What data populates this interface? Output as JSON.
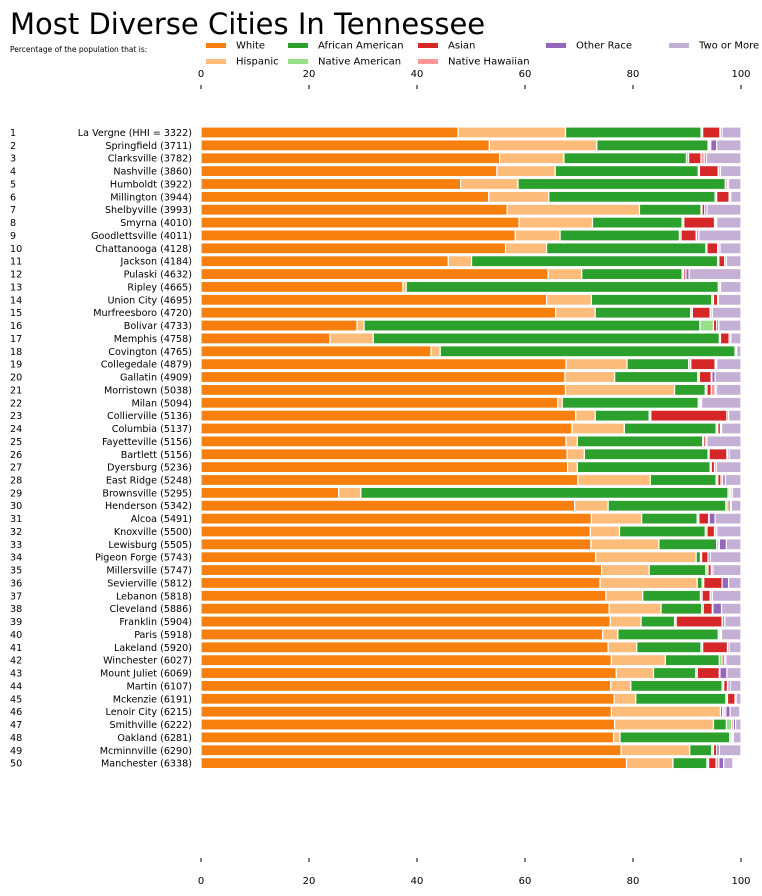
{
  "chart_data": {
    "type": "bar",
    "orientation": "horizontal",
    "stacked": true,
    "title": "Most Diverse Cities In Tennessee",
    "subtitle": "Percentage of the population that is:",
    "xlim": [
      0,
      100
    ],
    "xticks": [
      0,
      20,
      40,
      60,
      80,
      100
    ],
    "xtick_labels": [
      "0",
      "20",
      "40",
      "60",
      "80",
      "100"
    ],
    "legend_position": "top",
    "legend_order": [
      "White",
      "Hispanic",
      "African American",
      "Native American",
      "Asian",
      "Native Hawaiian",
      "Other Race",
      "Two or More"
    ],
    "series": [
      {
        "name": "White",
        "color": "#f77f0e"
      },
      {
        "name": "Hispanic",
        "color": "#fdbc79"
      },
      {
        "name": "African American",
        "color": "#2ca02c"
      },
      {
        "name": "Native American",
        "color": "#98df8a"
      },
      {
        "name": "Asian",
        "color": "#d62728"
      },
      {
        "name": "Native Hawaiian",
        "color": "#ff9896"
      },
      {
        "name": "Other Race",
        "color": "#9467bd"
      },
      {
        "name": "Two or More",
        "color": "#c5b0d5"
      }
    ],
    "categories": [
      {
        "rank": "1",
        "label": "La Vergne (HHI = 3322)",
        "values": [
          47.6,
          19.9,
          25.1,
          0.3,
          3.2,
          0.1,
          0.3,
          3.5
        ]
      },
      {
        "rank": "2",
        "label": "Springfield (3711)",
        "values": [
          53.4,
          19.9,
          20.6,
          0.2,
          0.2,
          0.1,
          1.1,
          4.5
        ]
      },
      {
        "rank": "3",
        "label": "Clarksville (3782)",
        "values": [
          55.3,
          11.9,
          22.7,
          0.4,
          2.3,
          0.6,
          0.4,
          6.4
        ]
      },
      {
        "rank": "4",
        "label": "Nashville (3860)",
        "values": [
          54.8,
          10.8,
          26.5,
          0.2,
          3.5,
          0.1,
          0.3,
          3.8
        ]
      },
      {
        "rank": "5",
        "label": "Humboldt (3922)",
        "values": [
          48.1,
          10.6,
          38.4,
          0.1,
          0.3,
          0.0,
          0.2,
          2.3
        ]
      },
      {
        "rank": "6",
        "label": "Millington (3944)",
        "values": [
          53.3,
          11.1,
          30.8,
          0.3,
          2.3,
          0.2,
          0.1,
          1.9
        ]
      },
      {
        "rank": "7",
        "label": "Shelbyville (3993)",
        "values": [
          56.7,
          24.5,
          11.4,
          0.2,
          0.5,
          0.0,
          0.4,
          6.3
        ]
      },
      {
        "rank": "8",
        "label": "Smyrna (4010)",
        "values": [
          58.9,
          13.6,
          16.6,
          0.3,
          5.7,
          0.2,
          0.2,
          4.5
        ]
      },
      {
        "rank": "9",
        "label": "Goodlettsville (4011)",
        "values": [
          58.2,
          8.3,
          22.1,
          0.3,
          2.8,
          0.1,
          0.4,
          7.8
        ]
      },
      {
        "rank": "10",
        "label": "Chattanooga (4128)",
        "values": [
          56.4,
          7.6,
          29.5,
          0.2,
          2.0,
          0.1,
          0.3,
          3.9
        ]
      },
      {
        "rank": "11",
        "label": "Jackson (4184)",
        "values": [
          45.8,
          4.3,
          45.6,
          0.2,
          1.1,
          0.0,
          0.3,
          2.7
        ]
      },
      {
        "rank": "12",
        "label": "Pulaski (4632)",
        "values": [
          64.3,
          6.2,
          18.6,
          0.3,
          0.4,
          0.0,
          0.6,
          9.6
        ]
      },
      {
        "rank": "13",
        "label": "Ripley (4665)",
        "values": [
          37.4,
          0.6,
          57.8,
          0.3,
          0.0,
          0.0,
          0.1,
          3.8
        ]
      },
      {
        "rank": "14",
        "label": "Union City (4695)",
        "values": [
          64.0,
          8.3,
          22.3,
          0.3,
          0.8,
          0.0,
          0.1,
          4.2
        ]
      },
      {
        "rank": "15",
        "label": "Murfreesboro (4720)",
        "values": [
          65.7,
          7.3,
          17.7,
          0.3,
          3.3,
          0.1,
          0.3,
          5.3
        ]
      },
      {
        "rank": "16",
        "label": "Bolivar (4733)",
        "values": [
          28.9,
          1.3,
          62.2,
          2.5,
          0.6,
          0.0,
          0.4,
          4.1
        ]
      },
      {
        "rank": "17",
        "label": "Memphis (4758)",
        "values": [
          23.9,
          8.0,
          64.1,
          0.2,
          1.6,
          0.0,
          0.3,
          1.9
        ]
      },
      {
        "rank": "18",
        "label": "Covington (4765)",
        "values": [
          42.6,
          1.7,
          54.6,
          0.1,
          0.0,
          0.0,
          0.2,
          0.8
        ]
      },
      {
        "rank": "19",
        "label": "Collegedale (4879)",
        "values": [
          67.6,
          11.3,
          11.4,
          0.4,
          4.5,
          0.1,
          0.2,
          4.5
        ]
      },
      {
        "rank": "20",
        "label": "Gallatin (4909)",
        "values": [
          67.4,
          9.2,
          15.4,
          0.3,
          2.2,
          0.1,
          0.6,
          4.8
        ]
      },
      {
        "rank": "21",
        "label": "Morristown (5038)",
        "values": [
          67.5,
          20.2,
          5.7,
          0.3,
          0.8,
          0.7,
          0.2,
          4.6
        ]
      },
      {
        "rank": "22",
        "label": "Milan (5094)",
        "values": [
          66.1,
          0.8,
          25.2,
          0.3,
          0.2,
          0.0,
          0.1,
          7.3
        ]
      },
      {
        "rank": "23",
        "label": "Collierville (5136)",
        "values": [
          69.4,
          3.6,
          10.0,
          0.3,
          14.1,
          0.0,
          0.3,
          2.3
        ]
      },
      {
        "rank": "24",
        "label": "Columbia (5137)",
        "values": [
          68.7,
          9.7,
          17.0,
          0.3,
          0.5,
          0.0,
          0.2,
          3.6
        ]
      },
      {
        "rank": "25",
        "label": "Fayetteville (5156)",
        "values": [
          67.6,
          2.1,
          23.2,
          0.2,
          0.4,
          0.0,
          0.2,
          6.3
        ]
      },
      {
        "rank": "26",
        "label": "Bartlett (5156)",
        "values": [
          67.8,
          3.2,
          22.9,
          0.2,
          3.3,
          0.1,
          0.3,
          2.2
        ]
      },
      {
        "rank": "27",
        "label": "Dyersburg (5236)",
        "values": [
          67.9,
          1.8,
          24.6,
          0.2,
          0.6,
          0.0,
          0.3,
          4.6
        ]
      },
      {
        "rank": "28",
        "label": "East Ridge (5248)",
        "values": [
          69.8,
          13.4,
          12.2,
          0.3,
          0.6,
          0.3,
          0.5,
          2.9
        ]
      },
      {
        "rank": "29",
        "label": "Brownsville (5295)",
        "values": [
          25.5,
          4.1,
          68.0,
          0.3,
          0.2,
          0.0,
          0.3,
          1.6
        ]
      },
      {
        "rank": "30",
        "label": "Henderson (5342)",
        "values": [
          69.2,
          6.2,
          21.8,
          0.4,
          0.4,
          0.0,
          0.2,
          1.8
        ]
      },
      {
        "rank": "31",
        "label": "Alcoa (5491)",
        "values": [
          72.3,
          9.3,
          10.3,
          0.3,
          1.8,
          0.1,
          1.1,
          4.8
        ]
      },
      {
        "rank": "32",
        "label": "Knoxville (5500)",
        "values": [
          72.1,
          5.4,
          15.9,
          0.3,
          1.4,
          0.1,
          0.3,
          4.5
        ]
      },
      {
        "rank": "33",
        "label": "Lewisburg (5505)",
        "values": [
          72.2,
          12.6,
          10.7,
          0.4,
          0.1,
          0.0,
          1.3,
          2.7
        ]
      },
      {
        "rank": "34",
        "label": "Pigeon Forge (5743)",
        "values": [
          73.1,
          18.6,
          0.8,
          0.2,
          1.2,
          0.0,
          0.4,
          5.7
        ]
      },
      {
        "rank": "35",
        "label": "Millersville (5747)",
        "values": [
          74.2,
          8.8,
          10.5,
          0.4,
          0.6,
          0.0,
          0.3,
          5.2
        ]
      },
      {
        "rank": "36",
        "label": "Sevierville (5812)",
        "values": [
          73.9,
          18.0,
          0.9,
          0.3,
          3.4,
          0.0,
          1.2,
          2.3
        ]
      },
      {
        "rank": "37",
        "label": "Lebanon (5818)",
        "values": [
          75.0,
          6.8,
          10.7,
          0.3,
          1.5,
          0.1,
          0.3,
          5.3
        ]
      },
      {
        "rank": "38",
        "label": "Cleveland (5886)",
        "values": [
          75.6,
          9.6,
          7.5,
          0.3,
          1.7,
          0.1,
          1.6,
          3.6
        ]
      },
      {
        "rank": "39",
        "label": "Franklin (5904)",
        "values": [
          75.8,
          5.7,
          6.2,
          0.3,
          8.5,
          0.1,
          0.4,
          3.0
        ]
      },
      {
        "rank": "40",
        "label": "Paris (5918)",
        "values": [
          74.4,
          2.8,
          18.6,
          0.3,
          0.1,
          0.0,
          0.2,
          3.6
        ]
      },
      {
        "rank": "41",
        "label": "Lakeland (5920)",
        "values": [
          75.4,
          5.3,
          11.9,
          0.3,
          4.6,
          0.0,
          0.3,
          2.2
        ]
      },
      {
        "rank": "42",
        "label": "Winchester (6027)",
        "values": [
          76.0,
          10.0,
          10.0,
          0.5,
          0.4,
          0.0,
          0.3,
          2.8
        ]
      },
      {
        "rank": "43",
        "label": "Mount Juliet (6069)",
        "values": [
          76.9,
          6.9,
          7.8,
          0.3,
          4.1,
          0.1,
          1.3,
          2.6
        ]
      },
      {
        "rank": "44",
        "label": "Martin (6107)",
        "values": [
          75.9,
          3.7,
          16.9,
          0.3,
          0.7,
          0.1,
          0.4,
          2.0
        ]
      },
      {
        "rank": "45",
        "label": "Mckenzie (6191)",
        "values": [
          76.5,
          4.0,
          16.7,
          0.3,
          1.4,
          0.0,
          0.2,
          0.9
        ]
      },
      {
        "rank": "46",
        "label": "Lenoir City (6215)",
        "values": [
          76.0,
          20.2,
          0.4,
          0.3,
          0.3,
          0.0,
          0.8,
          1.8
        ]
      },
      {
        "rank": "47",
        "label": "Smithville (6222)",
        "values": [
          76.6,
          18.3,
          2.4,
          1.0,
          0.3,
          0.0,
          0.4,
          1.0
        ]
      },
      {
        "rank": "48",
        "label": "Oakland (6281)",
        "values": [
          76.4,
          1.2,
          20.3,
          0.3,
          0.2,
          0.0,
          0.2,
          1.4
        ]
      },
      {
        "rank": "49",
        "label": "Mcminnville (6290)",
        "values": [
          77.8,
          12.7,
          4.1,
          0.3,
          0.6,
          0.0,
          0.5,
          4.0
        ]
      },
      {
        "rank": "50",
        "label": "Manchester (6338)",
        "values": [
          78.8,
          8.6,
          6.3,
          0.3,
          1.4,
          0.5,
          0.9,
          1.7
        ]
      }
    ]
  }
}
